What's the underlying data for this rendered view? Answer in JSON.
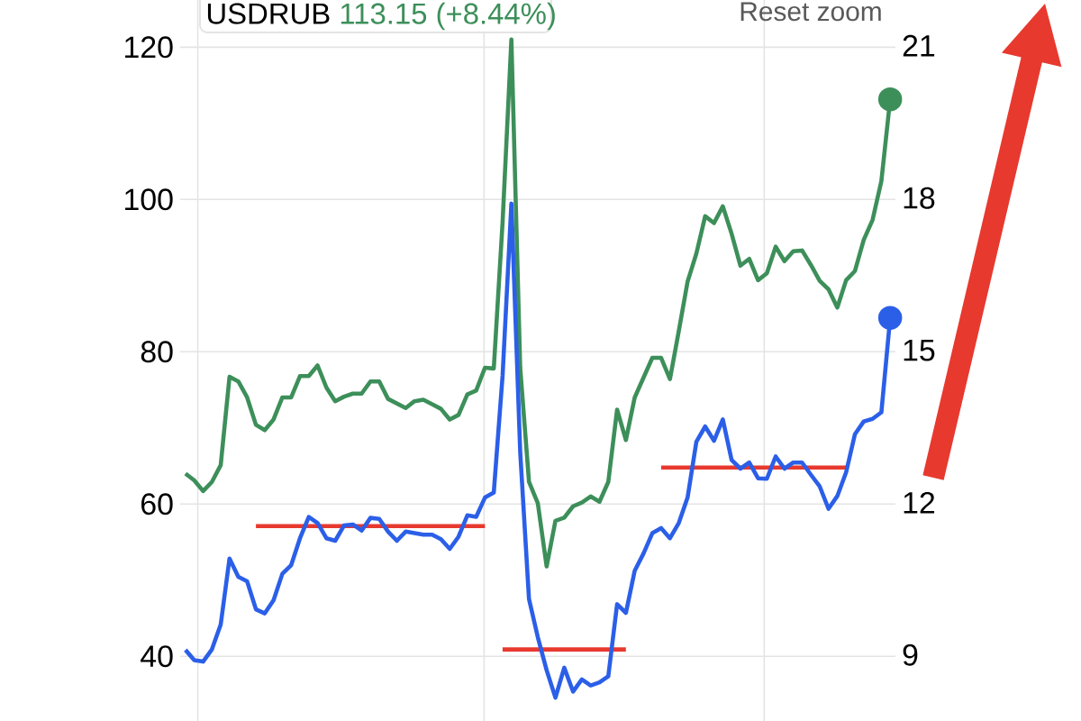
{
  "chart_data": {
    "type": "line",
    "categories": [
      null,
      null,
      null,
      null,
      null,
      null,
      null,
      null,
      null,
      null,
      null,
      null,
      null,
      null,
      null,
      null,
      null,
      null,
      null,
      null,
      null,
      null,
      null,
      null,
      null,
      null,
      null,
      null,
      null,
      null,
      null,
      null,
      null,
      null,
      null,
      null,
      null,
      null,
      null,
      null,
      null,
      null,
      null,
      null,
      null,
      null,
      null,
      null,
      null,
      null,
      null,
      null,
      null,
      null,
      null,
      null,
      null,
      null,
      null,
      null,
      null,
      null,
      null,
      null,
      null,
      null,
      null,
      null,
      null,
      null,
      null,
      null,
      null,
      null,
      null,
      null,
      null,
      null,
      null,
      null,
      null
    ],
    "ylim": [
      31.5,
      126.2
    ],
    "yticks": [
      40,
      60,
      80,
      100,
      120
    ],
    "y2lim": [
      7.7,
      21.9
    ],
    "y2ticks": [
      9,
      12,
      15,
      18,
      21
    ],
    "grid": true,
    "line_style": "solid",
    "annotations": [
      "USDRUB",
      "113.15 (+8.44%)",
      "Reset zoom"
    ],
    "series": [
      {
        "color": "#3d8f5a",
        "values": [
          64.0,
          63.1,
          61.7,
          62.9,
          65.1,
          76.7,
          76.1,
          74.0,
          70.4,
          69.7,
          71.1,
          74.0,
          74.0,
          76.8,
          76.8,
          78.2,
          75.3,
          73.5,
          74.1,
          74.5,
          74.5,
          76.1,
          76.1,
          73.8,
          73.2,
          72.6,
          73.5,
          73.7,
          73.1,
          72.5,
          71.1,
          71.7,
          74.4,
          74.9,
          77.9,
          77.8,
          97,
          121,
          77.9,
          62.9,
          60.1,
          51.8,
          57.8,
          58.2,
          59.7,
          60.2,
          61.0,
          60.3,
          62.9,
          72.4,
          68.4,
          74.0,
          76.6,
          79.2,
          79.2,
          76.4,
          82.7,
          89.2,
          92.9,
          97.8,
          96.9,
          99.1,
          95.5,
          91.3,
          92.2,
          89.4,
          90.3,
          93.8,
          91.9,
          93.2,
          93.3,
          91.4,
          89.3,
          88.2,
          85.8,
          89.4,
          90.6,
          94.7,
          97.3,
          102.4,
          113.15
        ]
      },
      {
        "color": "#2b5fe8",
        "axis": "y2",
        "values": [
          9.1,
          8.9,
          8.87,
          9.11,
          9.6,
          10.9,
          10.54,
          10.45,
          9.9,
          9.82,
          10.08,
          10.6,
          10.77,
          11.3,
          11.72,
          11.6,
          11.3,
          11.25,
          11.55,
          11.57,
          11.45,
          11.7,
          11.68,
          11.43,
          11.25,
          11.43,
          11.4,
          11.37,
          11.37,
          11.28,
          11.09,
          11.33,
          11.75,
          11.72,
          12.1,
          12.2,
          14.5,
          17.89,
          13.0,
          10.1,
          9.35,
          8.7,
          8.16,
          8.75,
          8.28,
          8.52,
          8.4,
          8.46,
          8.58,
          10.0,
          9.83,
          10.66,
          11.0,
          11.4,
          11.5,
          11.3,
          11.6,
          12.1,
          13.2,
          13.5,
          13.22,
          13.64,
          12.84,
          12.67,
          12.79,
          12.48,
          12.47,
          12.91,
          12.67,
          12.79,
          12.79,
          12.55,
          12.32,
          11.88,
          12.13,
          12.6,
          13.35,
          13.6,
          13.65,
          13.78,
          15.64
        ]
      },
      {
        "color": "#e8392f",
        "values": [
          null,
          null,
          null,
          null,
          null,
          null,
          null,
          null,
          57.1,
          57.1,
          57.1,
          57.1,
          57.1,
          57.1,
          57.1,
          57.1,
          57.1,
          57.1,
          57.1,
          57.1,
          57.1,
          57.1,
          57.1,
          57.1,
          57.1,
          57.1,
          57.1,
          57.1,
          57.1,
          57.1,
          57.1,
          57.1,
          57.1,
          57.1,
          57.1,
          null,
          null,
          null,
          null,
          null,
          null,
          null,
          null,
          null,
          null,
          null,
          null,
          null,
          null,
          null,
          null,
          null,
          null,
          null,
          null,
          null,
          null,
          null,
          null,
          null,
          null,
          null,
          null,
          null,
          null,
          null,
          null,
          null,
          null,
          null,
          null,
          null,
          null,
          null,
          null,
          null,
          null,
          null,
          null,
          null,
          null
        ]
      },
      {
        "color": "#e8392f",
        "values": [
          null,
          null,
          null,
          null,
          null,
          null,
          null,
          null,
          null,
          null,
          null,
          null,
          null,
          null,
          null,
          null,
          null,
          null,
          null,
          null,
          null,
          null,
          null,
          null,
          null,
          null,
          null,
          null,
          null,
          null,
          null,
          null,
          null,
          null,
          null,
          null,
          40.9,
          40.9,
          40.9,
          40.9,
          40.9,
          40.9,
          40.9,
          40.9,
          40.9,
          40.9,
          40.9,
          40.9,
          40.9,
          40.9,
          40.9,
          null,
          null,
          null,
          null,
          null,
          null,
          null,
          null,
          null,
          null,
          null,
          null,
          null,
          null,
          null,
          null,
          null,
          null,
          null,
          null,
          null,
          null,
          null,
          null,
          null,
          null,
          null,
          null,
          null,
          null
        ]
      },
      {
        "color": "#e8392f",
        "values": [
          null,
          null,
          null,
          null,
          null,
          null,
          null,
          null,
          null,
          null,
          null,
          null,
          null,
          null,
          null,
          null,
          null,
          null,
          null,
          null,
          null,
          null,
          null,
          null,
          null,
          null,
          null,
          null,
          null,
          null,
          null,
          null,
          null,
          null,
          null,
          null,
          null,
          null,
          null,
          null,
          null,
          null,
          null,
          null,
          null,
          null,
          null,
          null,
          null,
          null,
          null,
          null,
          null,
          null,
          64.8,
          64.8,
          64.8,
          64.8,
          64.8,
          64.8,
          64.8,
          64.8,
          64.8,
          64.8,
          64.8,
          64.8,
          64.8,
          64.8,
          64.8,
          64.8,
          64.8,
          64.8,
          64.8,
          64.8,
          64.8,
          64.8,
          null,
          null,
          null,
          null,
          null
        ]
      },
      {
        "type": "scatter",
        "color": "#3d8f5a",
        "marker": "circle",
        "values": [
          null,
          null,
          null,
          null,
          null,
          null,
          null,
          null,
          null,
          null,
          null,
          null,
          null,
          null,
          null,
          null,
          null,
          null,
          null,
          null,
          null,
          null,
          null,
          null,
          null,
          null,
          null,
          null,
          null,
          null,
          null,
          null,
          null,
          null,
          null,
          null,
          null,
          null,
          null,
          null,
          null,
          null,
          null,
          null,
          null,
          null,
          null,
          null,
          null,
          null,
          null,
          null,
          null,
          null,
          null,
          null,
          null,
          null,
          null,
          null,
          null,
          null,
          null,
          null,
          null,
          null,
          null,
          null,
          null,
          null,
          null,
          null,
          null,
          null,
          null,
          null,
          null,
          null,
          null,
          null,
          113.15
        ]
      },
      {
        "type": "scatter",
        "color": "#2b5fe8",
        "axis": "y2",
        "marker": "circle",
        "values": [
          null,
          null,
          null,
          null,
          null,
          null,
          null,
          null,
          null,
          null,
          null,
          null,
          null,
          null,
          null,
          null,
          null,
          null,
          null,
          null,
          null,
          null,
          null,
          null,
          null,
          null,
          null,
          null,
          null,
          null,
          null,
          null,
          null,
          null,
          null,
          null,
          null,
          null,
          null,
          null,
          null,
          null,
          null,
          null,
          null,
          null,
          null,
          null,
          null,
          null,
          null,
          null,
          null,
          null,
          null,
          null,
          null,
          null,
          null,
          null,
          null,
          null,
          null,
          null,
          null,
          null,
          null,
          null,
          null,
          null,
          null,
          null,
          null,
          null,
          null,
          null,
          null,
          null,
          null,
          null,
          15.64
        ]
      }
    ]
  }
}
